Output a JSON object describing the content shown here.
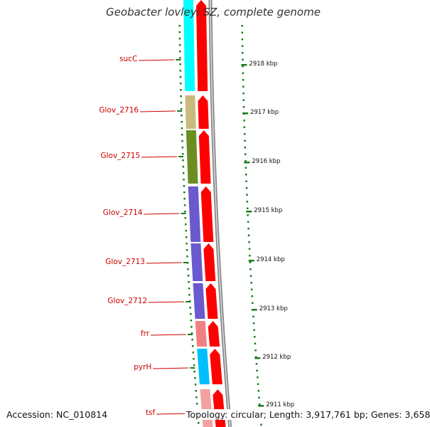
{
  "title": "Geobacter lovleyi SZ, complete genome",
  "genes": [
    {
      "name": "sucC",
      "color": "#00ffff"
    },
    {
      "name": "Glov_2716",
      "color": "#c8bc7c"
    },
    {
      "name": "Glov_2715",
      "color": "#6b8e23"
    },
    {
      "name": "Glov_2714",
      "color": "#6a5acd"
    },
    {
      "name": "Glov_2713",
      "color": "#6a5acd"
    },
    {
      "name": "Glov_2712",
      "color": "#6a5acd"
    },
    {
      "name": "frr",
      "color": "#f08080"
    },
    {
      "name": "pyrH",
      "color": "#00bfff"
    },
    {
      "name": "tsf",
      "color": "#f4a0a0"
    }
  ],
  "ticks": [
    "2918 kbp",
    "2917 kbp",
    "2916 kbp",
    "2915 kbp",
    "2914 kbp",
    "2913 kbp",
    "2912 kbp",
    "2911 kbp"
  ],
  "strand_color": "#ff0000",
  "backbone_color": "#888888",
  "tick_color": "#1a7a1a",
  "footer": {
    "accession": "Accession: NC_010814",
    "topology": "Topology: circular; Length: 3,917,761 bp; Genes: 3,658"
  }
}
